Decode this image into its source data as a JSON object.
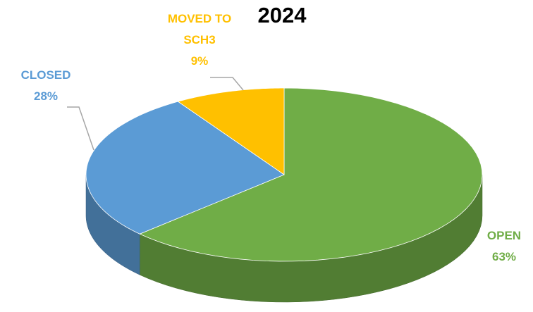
{
  "chart_data": {
    "type": "pie",
    "title": "2024",
    "categories": [
      "OPEN",
      "CLOSED",
      "MOVED TO SCH3"
    ],
    "values": [
      63,
      28,
      9
    ],
    "value_labels": [
      "63%",
      "28%",
      "9%"
    ],
    "colors": [
      "#70ad47",
      "#5b9bd5",
      "#ffc000"
    ]
  }
}
